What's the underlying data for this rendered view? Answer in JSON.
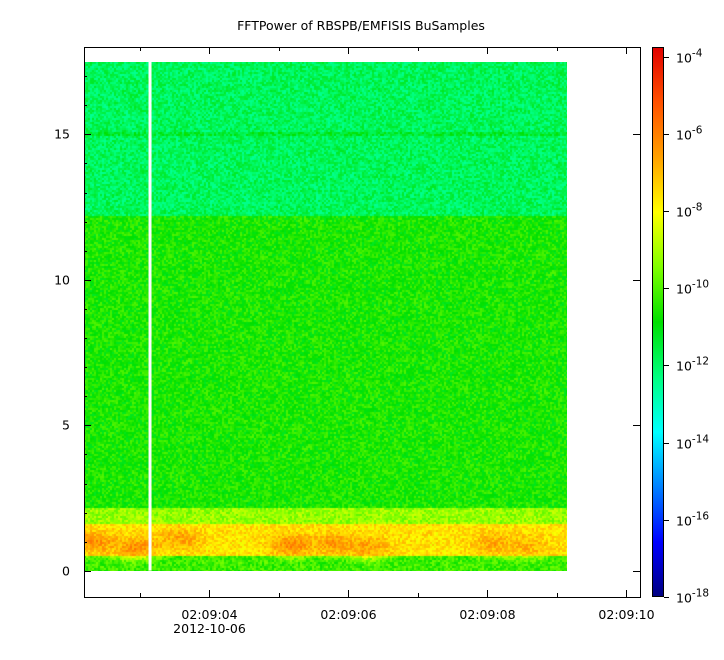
{
  "chart_data": {
    "type": "heatmap",
    "title": "FFTPower of RBSPB/EMFISIS  BuSamples",
    "xlabel": "",
    "ylabel": "",
    "x_ticks": [
      {
        "label": "02:09:04",
        "sub": "2012-10-06"
      },
      {
        "label": "02:09:06",
        "sub": ""
      },
      {
        "label": "02:09:08",
        "sub": ""
      },
      {
        "label": "02:09:10",
        "sub": ""
      }
    ],
    "x_tick_values_s": [
      4,
      6,
      8,
      10
    ],
    "x_minor_tick_values_s": [
      3,
      5,
      7,
      9
    ],
    "xlim_s": [
      2.2,
      10.2
    ],
    "data_x_range_s": [
      2.2,
      9.15
    ],
    "gap_at_s": 3.15,
    "ylim": [
      -0.9,
      18.0
    ],
    "y_ticks": [
      0,
      5,
      10,
      15
    ],
    "data_y_range": [
      0,
      17.5
    ],
    "colorbar": {
      "scale": "log",
      "range": [
        -18,
        -3.75
      ],
      "ticks": [
        {
          "exp": -4,
          "base": "10",
          "sup": "-4"
        },
        {
          "exp": -6,
          "base": "10",
          "sup": "-6"
        },
        {
          "exp": -8,
          "base": "10",
          "sup": "-8"
        },
        {
          "exp": -10,
          "base": "10",
          "sup": "-10"
        },
        {
          "exp": -12,
          "base": "10",
          "sup": "-12"
        },
        {
          "exp": -14,
          "base": "10",
          "sup": "-14"
        },
        {
          "exp": -16,
          "base": "10",
          "sup": "-16"
        },
        {
          "exp": -18,
          "base": "10",
          "sup": "-18"
        }
      ]
    },
    "spectral_bands": [
      {
        "y_from": 12.2,
        "y_to": 17.5,
        "log_power": -11.9
      },
      {
        "y_from": 2.2,
        "y_to": 12.2,
        "log_power": -10.6
      },
      {
        "y_from": 1.6,
        "y_to": 2.2,
        "log_power": -9.2
      },
      {
        "y_from": 0.5,
        "y_to": 1.6,
        "log_power": -7.6
      },
      {
        "y_from": 0.0,
        "y_to": 0.5,
        "log_power": -10.2
      }
    ],
    "features": [
      {
        "name": "15 Hz line",
        "y": 15.0,
        "log_power": -11.4
      },
      {
        "name": "hot spot",
        "x_s": 2.35,
        "y": 1.0,
        "log_power": -6.3
      },
      {
        "name": "hot spot",
        "x_s": 2.95,
        "y": 0.8,
        "log_power": -6.3
      },
      {
        "name": "hot spot",
        "x_s": 3.6,
        "y": 1.1,
        "log_power": -6.6
      },
      {
        "name": "hot spot",
        "x_s": 5.2,
        "y": 0.9,
        "log_power": -6.2
      },
      {
        "name": "hot spot",
        "x_s": 5.8,
        "y": 0.95,
        "log_power": -6.4
      },
      {
        "name": "hot spot",
        "x_s": 6.3,
        "y": 0.8,
        "log_power": -6.6
      },
      {
        "name": "hot spot",
        "x_s": 8.1,
        "y": 0.95,
        "log_power": -6.7
      },
      {
        "name": "hot spot",
        "x_s": 8.6,
        "y": 0.85,
        "log_power": -6.9
      }
    ],
    "colors": {
      "colormap": [
        "#00007f",
        "#0000ff",
        "#0080ff",
        "#00ffff",
        "#00ff80",
        "#00e000",
        "#80ff00",
        "#ffff00",
        "#ffa000",
        "#ff5000",
        "#e00000"
      ],
      "gap": "#ffffff",
      "axes": "#000000"
    }
  }
}
